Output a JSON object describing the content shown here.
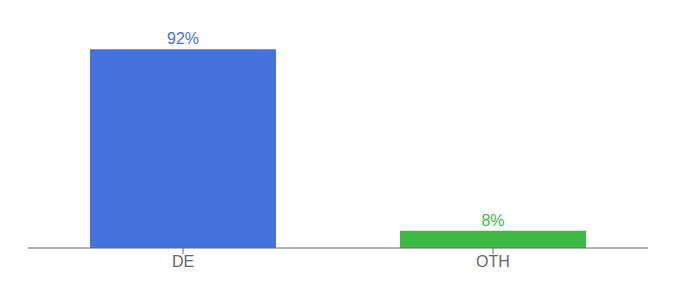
{
  "chart_data": {
    "type": "bar",
    "categories": [
      "DE",
      "OTH"
    ],
    "values": [
      92,
      8
    ],
    "value_labels": [
      "92%",
      "8%"
    ],
    "data_labels": true,
    "colors": [
      "#4472dd",
      "#3cb943"
    ],
    "ylim": [
      0,
      100
    ],
    "tick_labels": "x",
    "grid": false
  }
}
